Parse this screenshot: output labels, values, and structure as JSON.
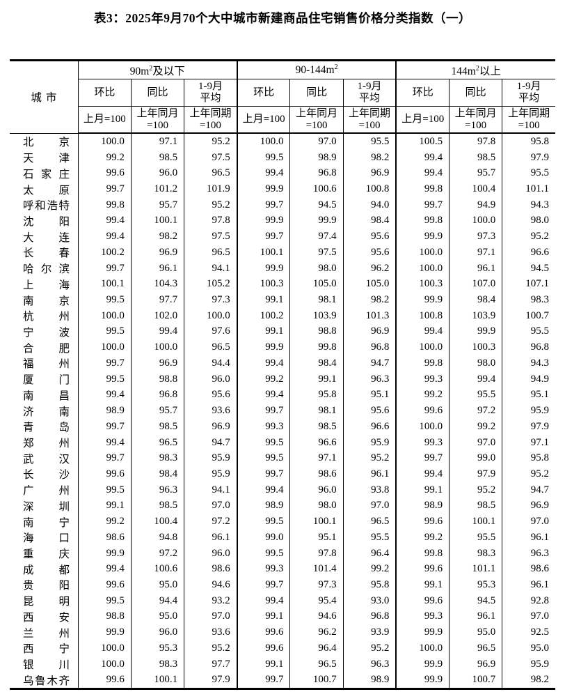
{
  "title": "表3：2025年9月70个大中城市新建商品住宅销售价格分类指数（一）",
  "table": {
    "city_header": "城市",
    "groups": [
      {
        "prefix": "90m",
        "sup": "2",
        "suffix": "及以下"
      },
      {
        "prefix": "90-144m",
        "sup": "2",
        "suffix": ""
      },
      {
        "prefix": "144m",
        "sup": "2",
        "suffix": "以上"
      }
    ],
    "sub_headers": [
      "环比",
      "同比",
      "1-9月\n平均"
    ],
    "base_headers": [
      "上月=100",
      "上年同月\n=100",
      "上年同期\n=100"
    ],
    "rows": [
      {
        "city": "北京",
        "values": [
          "100.0",
          "97.1",
          "95.2",
          "100.0",
          "97.0",
          "95.5",
          "100.5",
          "97.8",
          "95.8"
        ]
      },
      {
        "city": "天津",
        "values": [
          "99.2",
          "98.5",
          "97.5",
          "99.5",
          "98.9",
          "98.2",
          "99.4",
          "98.5",
          "97.9"
        ]
      },
      {
        "city": "石家庄",
        "values": [
          "99.6",
          "96.0",
          "96.5",
          "99.4",
          "96.8",
          "96.9",
          "99.4",
          "95.7",
          "95.5"
        ]
      },
      {
        "city": "太原",
        "values": [
          "99.7",
          "101.2",
          "101.9",
          "99.9",
          "100.6",
          "100.8",
          "99.8",
          "100.4",
          "101.1"
        ]
      },
      {
        "city": "呼和浩特",
        "values": [
          "99.8",
          "95.7",
          "95.2",
          "99.7",
          "94.5",
          "94.0",
          "99.7",
          "94.9",
          "94.3"
        ]
      },
      {
        "city": "沈阳",
        "values": [
          "99.4",
          "100.1",
          "97.8",
          "99.9",
          "99.9",
          "98.4",
          "99.8",
          "100.0",
          "98.0"
        ]
      },
      {
        "city": "大连",
        "values": [
          "99.4",
          "98.2",
          "97.5",
          "99.7",
          "97.4",
          "95.6",
          "99.9",
          "97.3",
          "95.2"
        ]
      },
      {
        "city": "长春",
        "values": [
          "100.2",
          "96.9",
          "96.5",
          "100.1",
          "97.5",
          "95.6",
          "100.0",
          "97.1",
          "96.6"
        ]
      },
      {
        "city": "哈尔滨",
        "values": [
          "99.7",
          "96.1",
          "94.1",
          "99.9",
          "98.0",
          "96.2",
          "100.0",
          "96.1",
          "94.5"
        ]
      },
      {
        "city": "上海",
        "values": [
          "100.1",
          "104.3",
          "105.2",
          "100.3",
          "105.0",
          "105.0",
          "100.3",
          "107.0",
          "107.1"
        ]
      },
      {
        "city": "南京",
        "values": [
          "99.5",
          "97.7",
          "97.3",
          "99.1",
          "98.1",
          "98.2",
          "99.9",
          "98.4",
          "98.3"
        ]
      },
      {
        "city": "杭州",
        "values": [
          "100.0",
          "102.0",
          "100.0",
          "100.2",
          "103.9",
          "101.3",
          "100.8",
          "103.9",
          "100.7"
        ]
      },
      {
        "city": "宁波",
        "values": [
          "99.5",
          "99.4",
          "97.6",
          "99.1",
          "98.8",
          "96.9",
          "99.4",
          "99.9",
          "95.5"
        ]
      },
      {
        "city": "合肥",
        "values": [
          "100.0",
          "100.0",
          "96.5",
          "99.9",
          "99.8",
          "96.8",
          "100.0",
          "100.3",
          "96.8"
        ]
      },
      {
        "city": "福州",
        "values": [
          "99.7",
          "96.9",
          "94.4",
          "99.4",
          "98.4",
          "94.7",
          "99.8",
          "98.0",
          "94.3"
        ]
      },
      {
        "city": "厦门",
        "values": [
          "99.5",
          "98.8",
          "96.0",
          "99.2",
          "99.1",
          "96.3",
          "99.3",
          "99.4",
          "94.9"
        ]
      },
      {
        "city": "南昌",
        "values": [
          "99.4",
          "96.8",
          "95.6",
          "99.4",
          "95.8",
          "95.1",
          "99.2",
          "95.5",
          "95.1"
        ]
      },
      {
        "city": "济南",
        "values": [
          "98.9",
          "95.7",
          "93.6",
          "99.7",
          "98.1",
          "95.6",
          "99.6",
          "97.2",
          "95.9"
        ]
      },
      {
        "city": "青岛",
        "values": [
          "99.7",
          "98.5",
          "96.9",
          "99.3",
          "98.5",
          "96.6",
          "100.0",
          "99.2",
          "97.9"
        ]
      },
      {
        "city": "郑州",
        "values": [
          "99.4",
          "96.5",
          "94.7",
          "99.5",
          "96.6",
          "95.9",
          "99.3",
          "97.0",
          "97.1"
        ]
      },
      {
        "city": "武汉",
        "values": [
          "99.7",
          "98.3",
          "95.9",
          "99.5",
          "97.1",
          "95.2",
          "99.7",
          "99.0",
          "95.8"
        ]
      },
      {
        "city": "长沙",
        "values": [
          "99.6",
          "98.4",
          "95.9",
          "99.7",
          "98.6",
          "96.1",
          "99.4",
          "97.9",
          "95.2"
        ]
      },
      {
        "city": "广州",
        "values": [
          "99.5",
          "96.3",
          "94.1",
          "99.4",
          "96.0",
          "93.8",
          "99.1",
          "95.2",
          "94.7"
        ]
      },
      {
        "city": "深圳",
        "values": [
          "99.1",
          "98.5",
          "97.0",
          "98.9",
          "98.0",
          "97.0",
          "98.9",
          "98.5",
          "96.9"
        ]
      },
      {
        "city": "南宁",
        "values": [
          "99.2",
          "100.4",
          "97.2",
          "99.5",
          "100.1",
          "96.5",
          "99.6",
          "100.1",
          "97.0"
        ]
      },
      {
        "city": "海口",
        "values": [
          "98.6",
          "94.8",
          "96.1",
          "99.0",
          "95.1",
          "95.5",
          "99.2",
          "95.5",
          "96.1"
        ]
      },
      {
        "city": "重庆",
        "values": [
          "99.9",
          "97.2",
          "96.0",
          "99.5",
          "97.8",
          "96.4",
          "99.8",
          "98.3",
          "96.3"
        ]
      },
      {
        "city": "成都",
        "values": [
          "99.4",
          "100.6",
          "98.6",
          "99.3",
          "101.4",
          "99.2",
          "99.6",
          "101.1",
          "98.6"
        ]
      },
      {
        "city": "贵阳",
        "values": [
          "99.6",
          "95.0",
          "94.6",
          "99.7",
          "97.3",
          "95.8",
          "99.1",
          "95.3",
          "96.1"
        ]
      },
      {
        "city": "昆明",
        "values": [
          "99.5",
          "94.4",
          "93.2",
          "99.4",
          "95.4",
          "93.0",
          "99.6",
          "94.5",
          "92.8"
        ]
      },
      {
        "city": "西安",
        "values": [
          "98.8",
          "95.0",
          "97.0",
          "99.1",
          "94.6",
          "96.8",
          "99.3",
          "96.1",
          "97.0"
        ]
      },
      {
        "city": "兰州",
        "values": [
          "99.9",
          "96.0",
          "93.6",
          "99.6",
          "96.2",
          "93.9",
          "99.9",
          "95.0",
          "92.5"
        ]
      },
      {
        "city": "西宁",
        "values": [
          "100.0",
          "95.3",
          "95.2",
          "99.6",
          "96.4",
          "95.2",
          "100.0",
          "96.5",
          "95.0"
        ]
      },
      {
        "city": "银川",
        "values": [
          "100.0",
          "98.3",
          "97.7",
          "99.1",
          "96.5",
          "96.3",
          "99.9",
          "96.9",
          "95.9"
        ]
      },
      {
        "city": "乌鲁木齐",
        "values": [
          "99.6",
          "100.1",
          "97.9",
          "99.7",
          "100.7",
          "98.9",
          "99.9",
          "100.7",
          "98.2"
        ]
      }
    ]
  }
}
